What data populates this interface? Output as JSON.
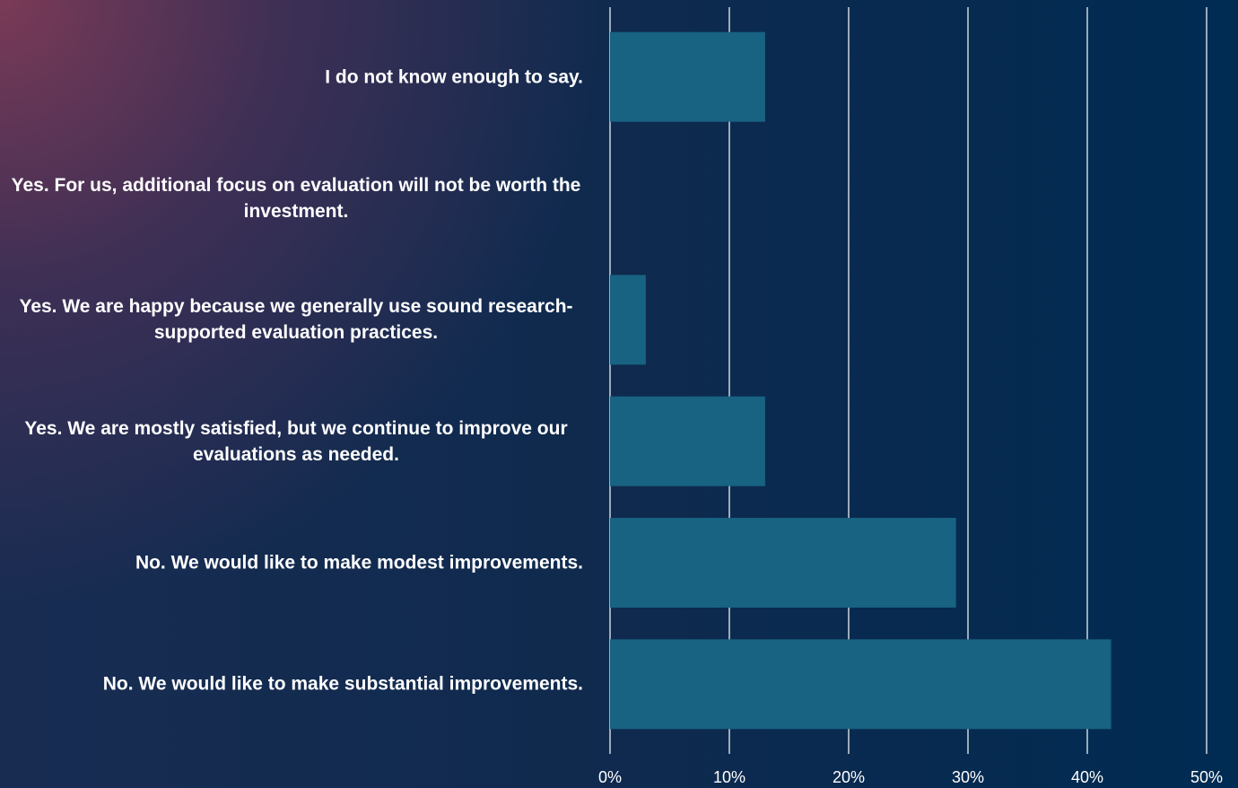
{
  "chart_data": {
    "type": "barh",
    "categories": [
      "I do not know enough to say.",
      "Yes. For us, additional focus on evaluation will not be worth the investment.",
      "Yes. We are happy because we generally use sound research-supported evaluation practices.",
      "Yes. We are mostly satisfied, but we continue to improve our evaluations as needed.",
      "No. We would like to make modest improvements.",
      "No. We would like to make substantial improvements."
    ],
    "values": [
      13,
      0,
      3,
      13,
      29,
      42
    ],
    "color": "#186282",
    "xlim": [
      0,
      50
    ],
    "xticks": [
      {
        "value": 0,
        "label": "0%"
      },
      {
        "value": 10,
        "label": "10%"
      },
      {
        "value": 20,
        "label": "20%"
      },
      {
        "value": 30,
        "label": "30%"
      },
      {
        "value": 40,
        "label": "40%"
      },
      {
        "value": 50,
        "label": "50%"
      }
    ],
    "grid": true
  }
}
